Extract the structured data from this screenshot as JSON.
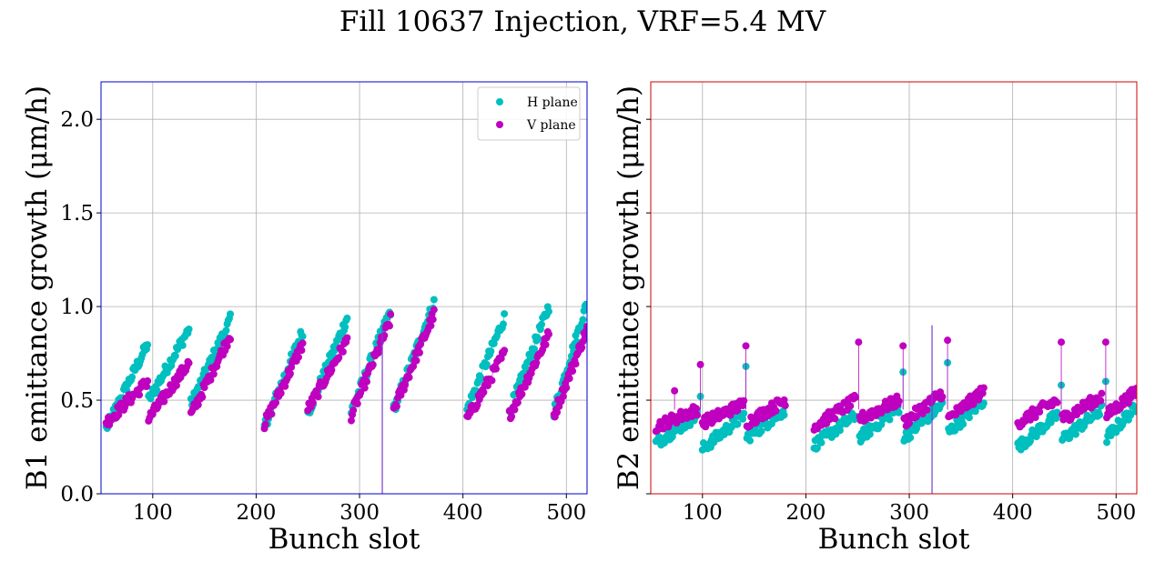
{
  "title": "Fill 10637 Injection, VRF=5.4 MV",
  "chart_data": [
    {
      "type": "scatter",
      "panel": "B1",
      "xlabel": "Bunch slot",
      "ylabel": "B1 emittance growth (μm/h)",
      "xlim": [
        50,
        520
      ],
      "ylim": [
        0,
        2.2
      ],
      "xticks": [
        100,
        200,
        300,
        400,
        500
      ],
      "yticks": [
        0.0,
        0.5,
        1.0,
        1.5,
        2.0
      ],
      "ytick_labels": [
        "0.0",
        "0.5",
        "1.0",
        "1.5",
        "2.0"
      ],
      "grid": true,
      "frame_color": "#0000cc",
      "legend": {
        "position": "top-right",
        "entries": [
          "H plane",
          "V plane"
        ]
      },
      "series": [
        {
          "name": "H plane",
          "color": "#00bfbf",
          "segments": [
            {
              "x0": 55,
              "x1": 95,
              "y0": 0.35,
              "y1": 0.8
            },
            {
              "x0": 96,
              "x1": 135,
              "y0": 0.5,
              "y1": 0.88
            },
            {
              "x0": 137,
              "x1": 175,
              "y0": 0.48,
              "y1": 0.93
            },
            {
              "x0": 208,
              "x1": 245,
              "y0": 0.36,
              "y1": 0.87
            },
            {
              "x0": 250,
              "x1": 288,
              "y0": 0.43,
              "y1": 0.94
            },
            {
              "x0": 292,
              "x1": 330,
              "y0": 0.44,
              "y1": 0.98
            },
            {
              "x0": 333,
              "x1": 372,
              "y0": 0.45,
              "y1": 1.02
            },
            {
              "x0": 404,
              "x1": 440,
              "y0": 0.45,
              "y1": 0.94
            },
            {
              "x0": 445,
              "x1": 483,
              "y0": 0.44,
              "y1": 1.0
            },
            {
              "x0": 488,
              "x1": 520,
              "y0": 0.44,
              "y1": 1.02
            }
          ]
        },
        {
          "name": "V plane",
          "color": "#bf00bf",
          "dip_x": 322,
          "segments": [
            {
              "x0": 55,
              "x1": 95,
              "y0": 0.38,
              "y1": 0.6
            },
            {
              "x0": 96,
              "x1": 135,
              "y0": 0.4,
              "y1": 0.7
            },
            {
              "x0": 137,
              "x1": 175,
              "y0": 0.42,
              "y1": 0.85
            },
            {
              "x0": 208,
              "x1": 245,
              "y0": 0.37,
              "y1": 0.8
            },
            {
              "x0": 250,
              "x1": 288,
              "y0": 0.45,
              "y1": 0.82
            },
            {
              "x0": 292,
              "x1": 330,
              "y0": 0.42,
              "y1": 0.93
            },
            {
              "x0": 333,
              "x1": 372,
              "y0": 0.45,
              "y1": 0.96
            },
            {
              "x0": 404,
              "x1": 440,
              "y0": 0.4,
              "y1": 0.75
            },
            {
              "x0": 445,
              "x1": 483,
              "y0": 0.42,
              "y1": 0.85
            },
            {
              "x0": 488,
              "x1": 520,
              "y0": 0.42,
              "y1": 0.88
            }
          ]
        }
      ]
    },
    {
      "type": "scatter",
      "panel": "B2",
      "xlabel": "Bunch slot",
      "ylabel": "B2 emittance growth (μm/h)",
      "xlim": [
        50,
        520
      ],
      "ylim": [
        0,
        2.2
      ],
      "xticks": [
        100,
        200,
        300,
        400,
        500
      ],
      "yticks": [
        0.0,
        0.5,
        1.0,
        1.5,
        2.0
      ],
      "grid": true,
      "frame_color": "#cc0000",
      "series": [
        {
          "name": "H plane",
          "color": "#00bfbf",
          "spikes": [
            [
              98,
              0.52
            ],
            [
              142,
              0.68
            ],
            [
              294,
              0.65
            ],
            [
              337,
              0.7
            ],
            [
              447,
              0.58
            ],
            [
              490,
              0.6
            ]
          ],
          "segments": [
            {
              "x0": 55,
              "x1": 95,
              "y0": 0.27,
              "y1": 0.42
            },
            {
              "x0": 100,
              "x1": 140,
              "y0": 0.24,
              "y1": 0.42
            },
            {
              "x0": 143,
              "x1": 180,
              "y0": 0.3,
              "y1": 0.45
            },
            {
              "x0": 208,
              "x1": 248,
              "y0": 0.26,
              "y1": 0.42
            },
            {
              "x0": 252,
              "x1": 290,
              "y0": 0.3,
              "y1": 0.46
            },
            {
              "x0": 295,
              "x1": 332,
              "y0": 0.3,
              "y1": 0.48
            },
            {
              "x0": 338,
              "x1": 372,
              "y0": 0.33,
              "y1": 0.5
            },
            {
              "x0": 405,
              "x1": 443,
              "y0": 0.25,
              "y1": 0.42
            },
            {
              "x0": 448,
              "x1": 486,
              "y0": 0.29,
              "y1": 0.45
            },
            {
              "x0": 491,
              "x1": 520,
              "y0": 0.3,
              "y1": 0.47
            }
          ]
        },
        {
          "name": "V plane",
          "color": "#bf00bf",
          "dip_x": 322,
          "spikes": [
            [
              73,
              0.55
            ],
            [
              98,
              0.69
            ],
            [
              142,
              0.79
            ],
            [
              251,
              0.81
            ],
            [
              294,
              0.79
            ],
            [
              337,
              0.82
            ],
            [
              447,
              0.81
            ],
            [
              490,
              0.81
            ]
          ],
          "segments": [
            {
              "x0": 55,
              "x1": 95,
              "y0": 0.36,
              "y1": 0.45
            },
            {
              "x0": 100,
              "x1": 140,
              "y0": 0.38,
              "y1": 0.48
            },
            {
              "x0": 143,
              "x1": 180,
              "y0": 0.38,
              "y1": 0.5
            },
            {
              "x0": 208,
              "x1": 248,
              "y0": 0.36,
              "y1": 0.5
            },
            {
              "x0": 252,
              "x1": 290,
              "y0": 0.4,
              "y1": 0.5
            },
            {
              "x0": 295,
              "x1": 332,
              "y0": 0.38,
              "y1": 0.54
            },
            {
              "x0": 338,
              "x1": 372,
              "y0": 0.4,
              "y1": 0.55
            },
            {
              "x0": 405,
              "x1": 443,
              "y0": 0.38,
              "y1": 0.5
            },
            {
              "x0": 448,
              "x1": 486,
              "y0": 0.4,
              "y1": 0.52
            },
            {
              "x0": 491,
              "x1": 520,
              "y0": 0.42,
              "y1": 0.55
            }
          ]
        }
      ]
    }
  ]
}
